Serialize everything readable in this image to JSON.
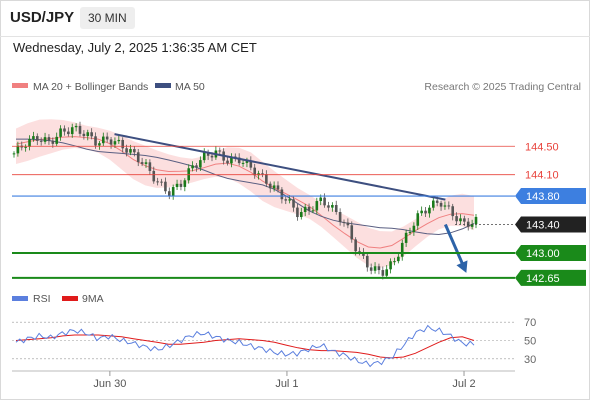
{
  "header": {
    "symbol": "USD/JPY",
    "timeframe": "30 MIN",
    "timestamp": "Wednesday, July 2, 2025 1:36:35 AM CET"
  },
  "legend": {
    "ma20_label": "MA 20 + Bollinger Bands",
    "ma50_label": "MA 50",
    "copyright": "Research © 2025 Trading Central"
  },
  "rsi_legend": {
    "rsi_label": "RSI",
    "ma_label": "9MA"
  },
  "colors": {
    "resistance": "#e8433c",
    "pivot": "#3d7fe0",
    "support": "#1a8a1a",
    "trendline": "#3d4f80",
    "bollinger_fill": "#fbd7d7",
    "ma20": "#f08080",
    "ma50": "#5a5f82",
    "candle_up": "#1a7a1a",
    "candle_down": "#555555",
    "rsi_line": "#5b7fde",
    "rsi_ma_line": "#e01b1b",
    "arrow": "#2d63a8"
  },
  "chart_data": [
    {
      "type": "candlestick",
      "title": "USD/JPY",
      "timeframe": "30 MIN",
      "x_ticks": [
        "Jun 30",
        "Jul 1",
        "Jul 2"
      ],
      "y_range": [
        142.55,
        145.15
      ],
      "levels": [
        {
          "value": 144.5,
          "label": "144.50",
          "kind": "resistance"
        },
        {
          "value": 144.1,
          "label": "144.10",
          "kind": "resistance"
        },
        {
          "value": 143.8,
          "label": "143.80",
          "kind": "pivot"
        },
        {
          "value": 143.4,
          "label": "143.40",
          "kind": "last"
        },
        {
          "value": 143.0,
          "label": "143.00",
          "kind": "support"
        },
        {
          "value": 142.65,
          "label": "142.65",
          "kind": "support"
        }
      ],
      "series": [
        {
          "name": "MA 20 + Bollinger Bands"
        },
        {
          "name": "MA 50"
        }
      ],
      "close_path": [
        144.4,
        144.55,
        144.62,
        144.55,
        144.7,
        144.75,
        144.68,
        144.55,
        144.6,
        144.52,
        144.4,
        144.25,
        144.02,
        143.85,
        143.95,
        144.2,
        144.35,
        144.42,
        144.3,
        144.32,
        144.2,
        144.05,
        143.9,
        143.75,
        143.55,
        143.62,
        143.75,
        143.6,
        143.4,
        143.02,
        142.8,
        142.72,
        142.85,
        143.2,
        143.5,
        143.65,
        143.72,
        143.55,
        143.4,
        143.45
      ],
      "trendline": [
        {
          "x": 0.22,
          "y": 144.67
        },
        {
          "x": 0.93,
          "y": 143.75
        }
      ],
      "forecast_arrow": [
        {
          "x": 0.93,
          "y": 143.4
        },
        {
          "x": 0.975,
          "y": 142.72
        }
      ]
    },
    {
      "type": "line",
      "title": "RSI",
      "y_ticks": [
        70,
        50,
        30
      ],
      "y_range": [
        20,
        80
      ],
      "series": [
        {
          "name": "RSI",
          "values": [
            48,
            52,
            55,
            53,
            58,
            61,
            58,
            52,
            55,
            50,
            47,
            43,
            40,
            44,
            50,
            56,
            58,
            54,
            50,
            48,
            44,
            41,
            37,
            35,
            36,
            41,
            45,
            38,
            34,
            28,
            24,
            26,
            32,
            45,
            58,
            64,
            61,
            55,
            47,
            46
          ]
        },
        {
          "name": "9MA",
          "values": [
            50,
            51,
            52,
            53,
            55,
            56,
            56,
            56,
            55,
            54,
            52,
            50,
            48,
            46,
            46,
            47,
            48,
            50,
            51,
            52,
            51,
            50,
            48,
            45,
            42,
            40,
            39,
            39,
            38,
            37,
            35,
            32,
            31,
            32,
            36,
            42,
            48,
            53,
            54,
            50
          ]
        }
      ]
    }
  ]
}
